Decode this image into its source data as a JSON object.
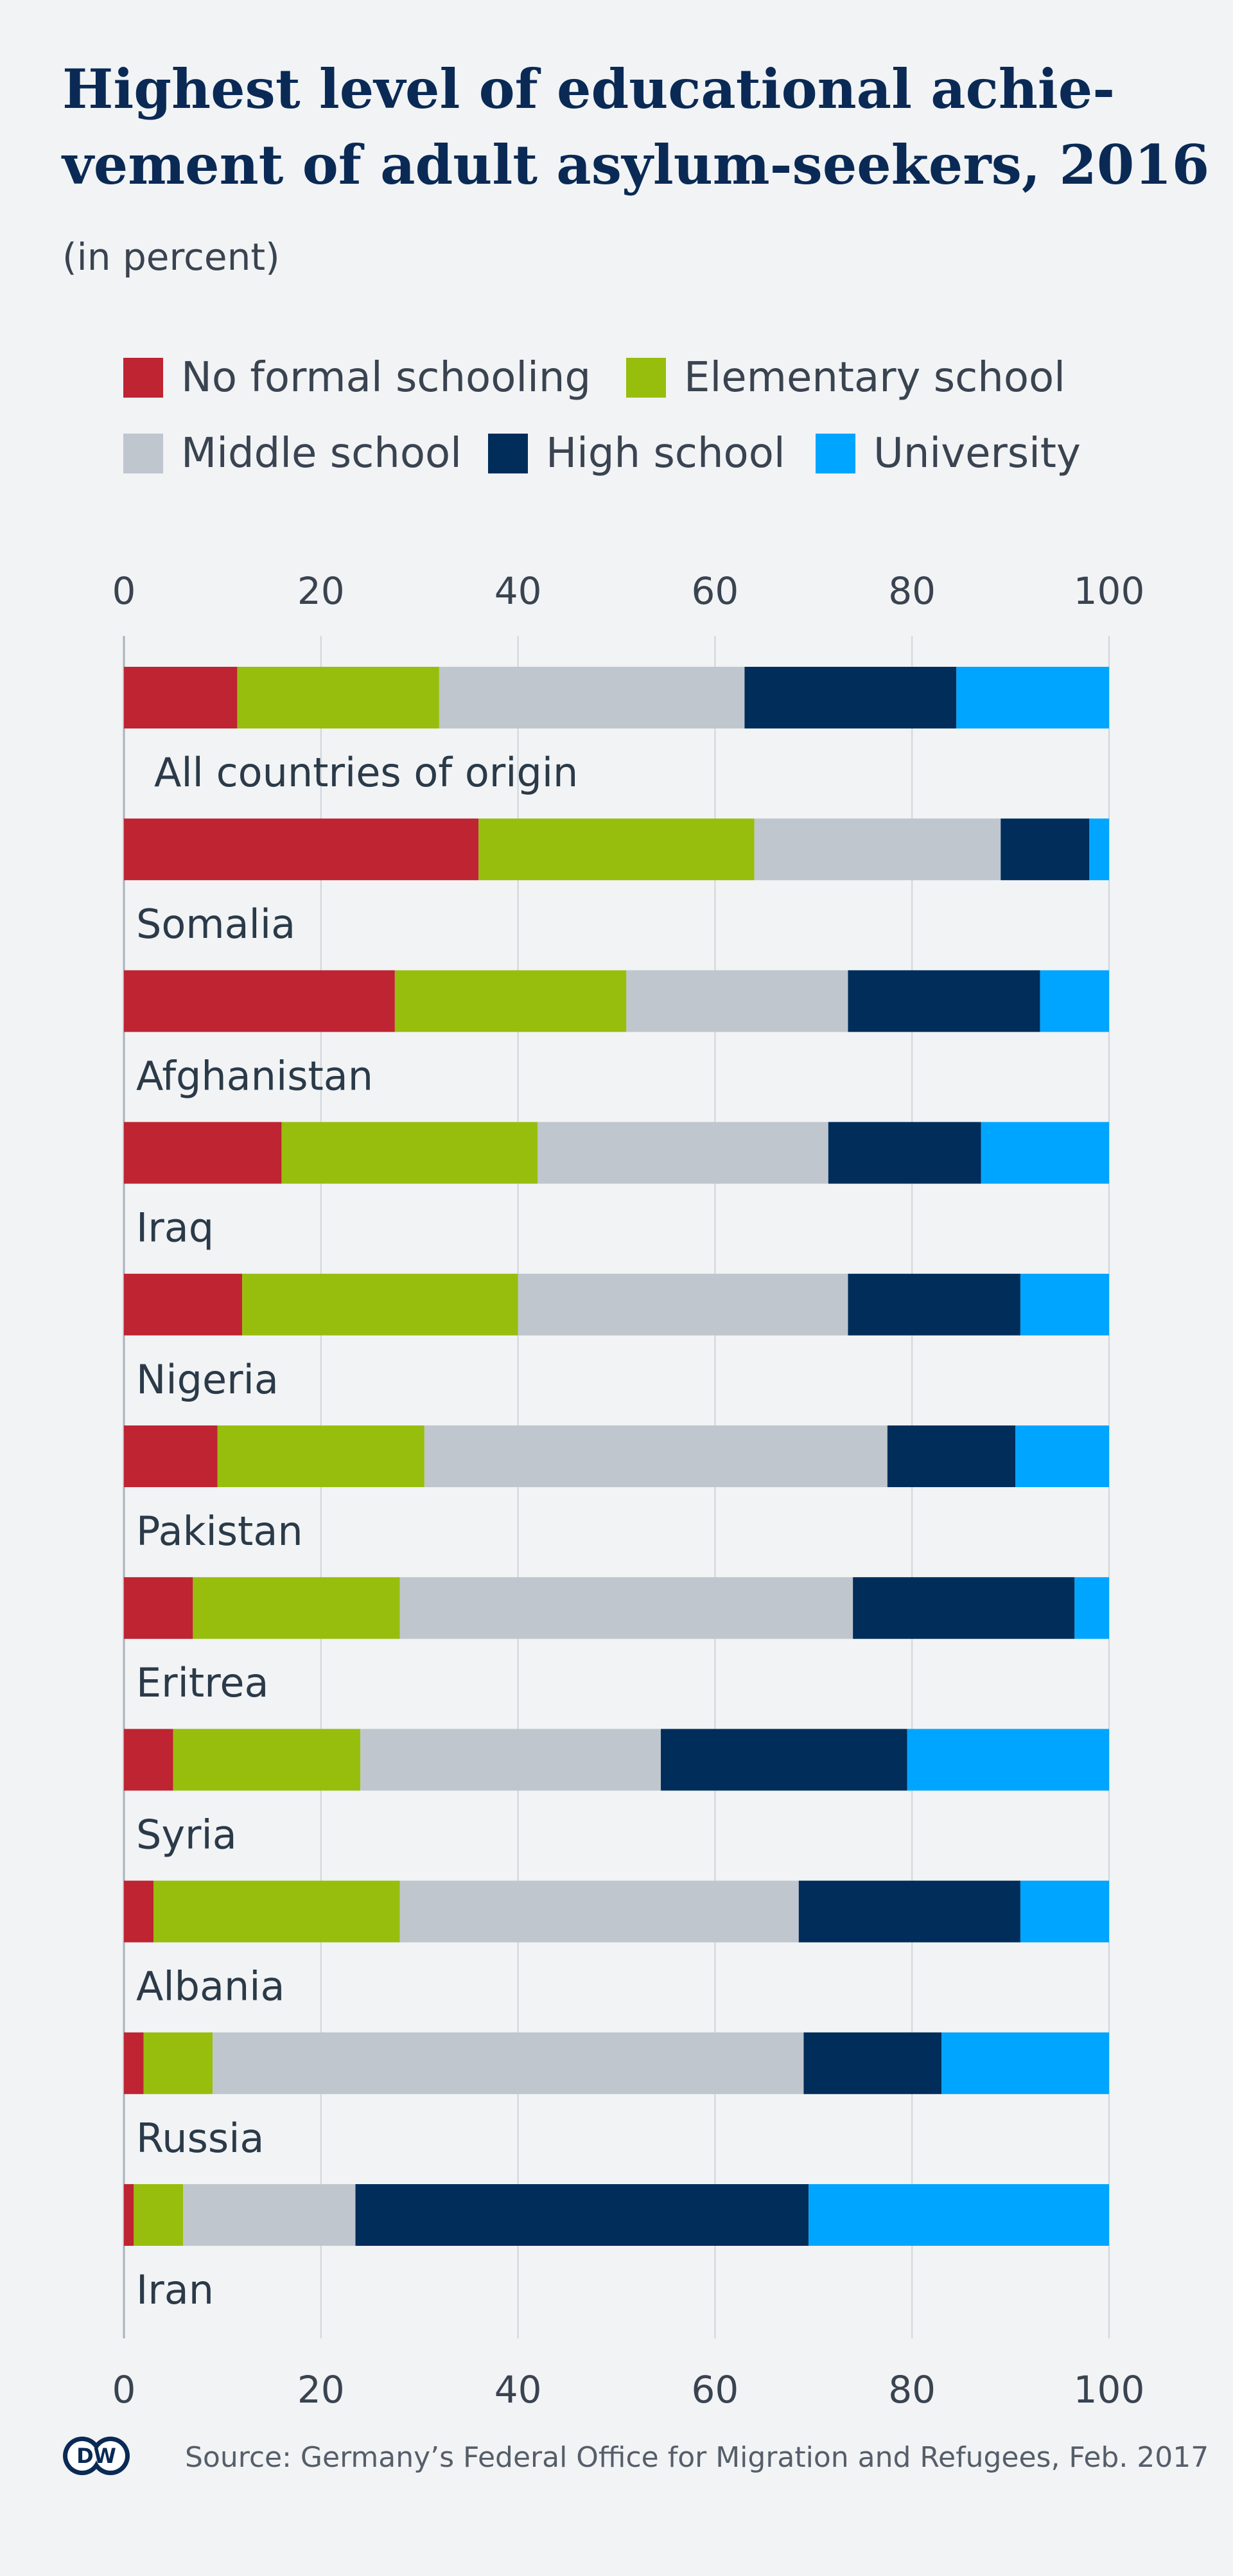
{
  "header": {
    "title_line1": "Highest level of educational achie-",
    "title_line2": "vement of adult asylum-seekers, 2016",
    "subtitle": "(in percent)"
  },
  "footer": {
    "logo_text": "DW",
    "source": "Source: Germany’s Federal Office for Migration and Refugees, Feb. 2017"
  },
  "chart_data": {
    "type": "bar",
    "orientation": "horizontal",
    "stacked": true,
    "xlim": [
      0,
      100
    ],
    "xticks": [
      0,
      20,
      40,
      60,
      80,
      100
    ],
    "grid": true,
    "legend_position": "top",
    "categories": [
      "All countries of origin",
      "Somalia",
      "Afghanistan",
      "Iraq",
      "Nigeria",
      "Pakistan",
      "Eritrea",
      "Syria",
      "Albania",
      "Russia",
      "Iran"
    ],
    "series": [
      {
        "name": "No formal schooling",
        "color": "#be2431",
        "values": [
          11.5,
          36,
          27.5,
          16,
          12,
          9.5,
          7,
          5,
          3,
          2,
          1
        ]
      },
      {
        "name": "Elementary school",
        "color": "#97be0d",
        "values": [
          20.5,
          28,
          23.5,
          26,
          28,
          21,
          21,
          19,
          25,
          7,
          5
        ]
      },
      {
        "name": "Middle school",
        "color": "#bfc6cd",
        "values": [
          31,
          25,
          22.5,
          29.5,
          33.5,
          47,
          46,
          30.5,
          40.5,
          60,
          17.5
        ]
      },
      {
        "name": "High school",
        "color": "#002d5a",
        "values": [
          21.5,
          9,
          19.5,
          15.5,
          17.5,
          13,
          22.5,
          25,
          22.5,
          14,
          46
        ]
      },
      {
        "name": "University",
        "color": "#00a5ff",
        "values": [
          15.5,
          2,
          7,
          13,
          9,
          9.5,
          3.5,
          20.5,
          9,
          17,
          30.5
        ]
      }
    ]
  }
}
